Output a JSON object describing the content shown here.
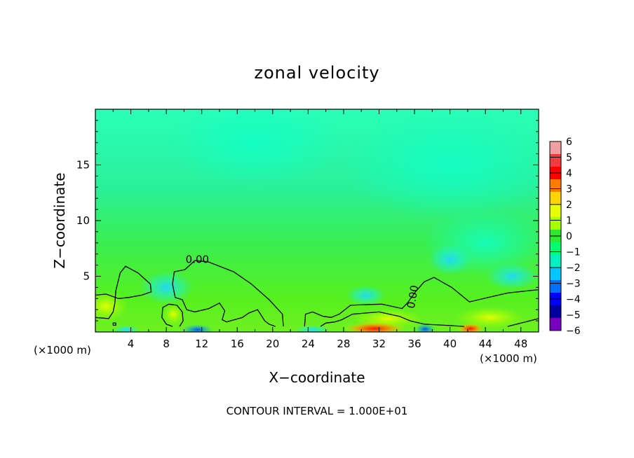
{
  "chart_data": {
    "type": "heatmap",
    "title": "zonal velocity",
    "xlabel": "X−coordinate",
    "ylabel": "Z−coordinate",
    "x_unit_left": "(×1000 m)",
    "x_unit_right": "(×1000 m)",
    "xlim": [
      0,
      50
    ],
    "ylim": [
      0,
      20
    ],
    "x_ticks": [
      4,
      8,
      12,
      16,
      20,
      24,
      28,
      32,
      36,
      40,
      44,
      48
    ],
    "x_tick_labels": [
      "4",
      "8",
      "12",
      "16",
      "20",
      "24",
      "28",
      "32",
      "36",
      "40",
      "44",
      "48"
    ],
    "y_ticks": [
      5,
      10,
      15
    ],
    "y_tick_labels": [
      "5",
      "10",
      "15"
    ],
    "contour_note": "CONTOUR INTERVAL = 1.000E+01",
    "contour_labels": [
      {
        "text": "0.00",
        "x": 11.5,
        "z": 6.2
      },
      {
        "text": "0.00",
        "x": 36.2,
        "z": 3.1,
        "rotated": true
      }
    ],
    "colorbar": {
      "levels": [
        6,
        5,
        4,
        3,
        2,
        1,
        0,
        -1,
        -2,
        -3,
        -4,
        -5,
        -6
      ],
      "labels": [
        "6",
        "5",
        "4",
        "3",
        "2",
        "1",
        "0",
        "−1",
        "−2",
        "−3",
        "−4",
        "−5",
        "−6"
      ],
      "colors": [
        "#f0a0a0",
        "#f03c3c",
        "#ff0000",
        "#ff7a00",
        "#ffd400",
        "#e8ff00",
        "#a8ff00",
        "#30e830",
        "#00ff70",
        "#00f0c0",
        "#00c8ff",
        "#0070ff",
        "#0000ff",
        "#0000a0",
        "#7a00c0"
      ]
    },
    "field": {
      "background_upper": "#18ffb0",
      "background_mid": "#2af08a",
      "background_lower": "#48ee20",
      "near_surface_positive": "#ffff00",
      "near_surface_max": "#ff2a00",
      "near_surface_negative": "#0088ff",
      "weak_negative": "#20e0ff"
    }
  }
}
